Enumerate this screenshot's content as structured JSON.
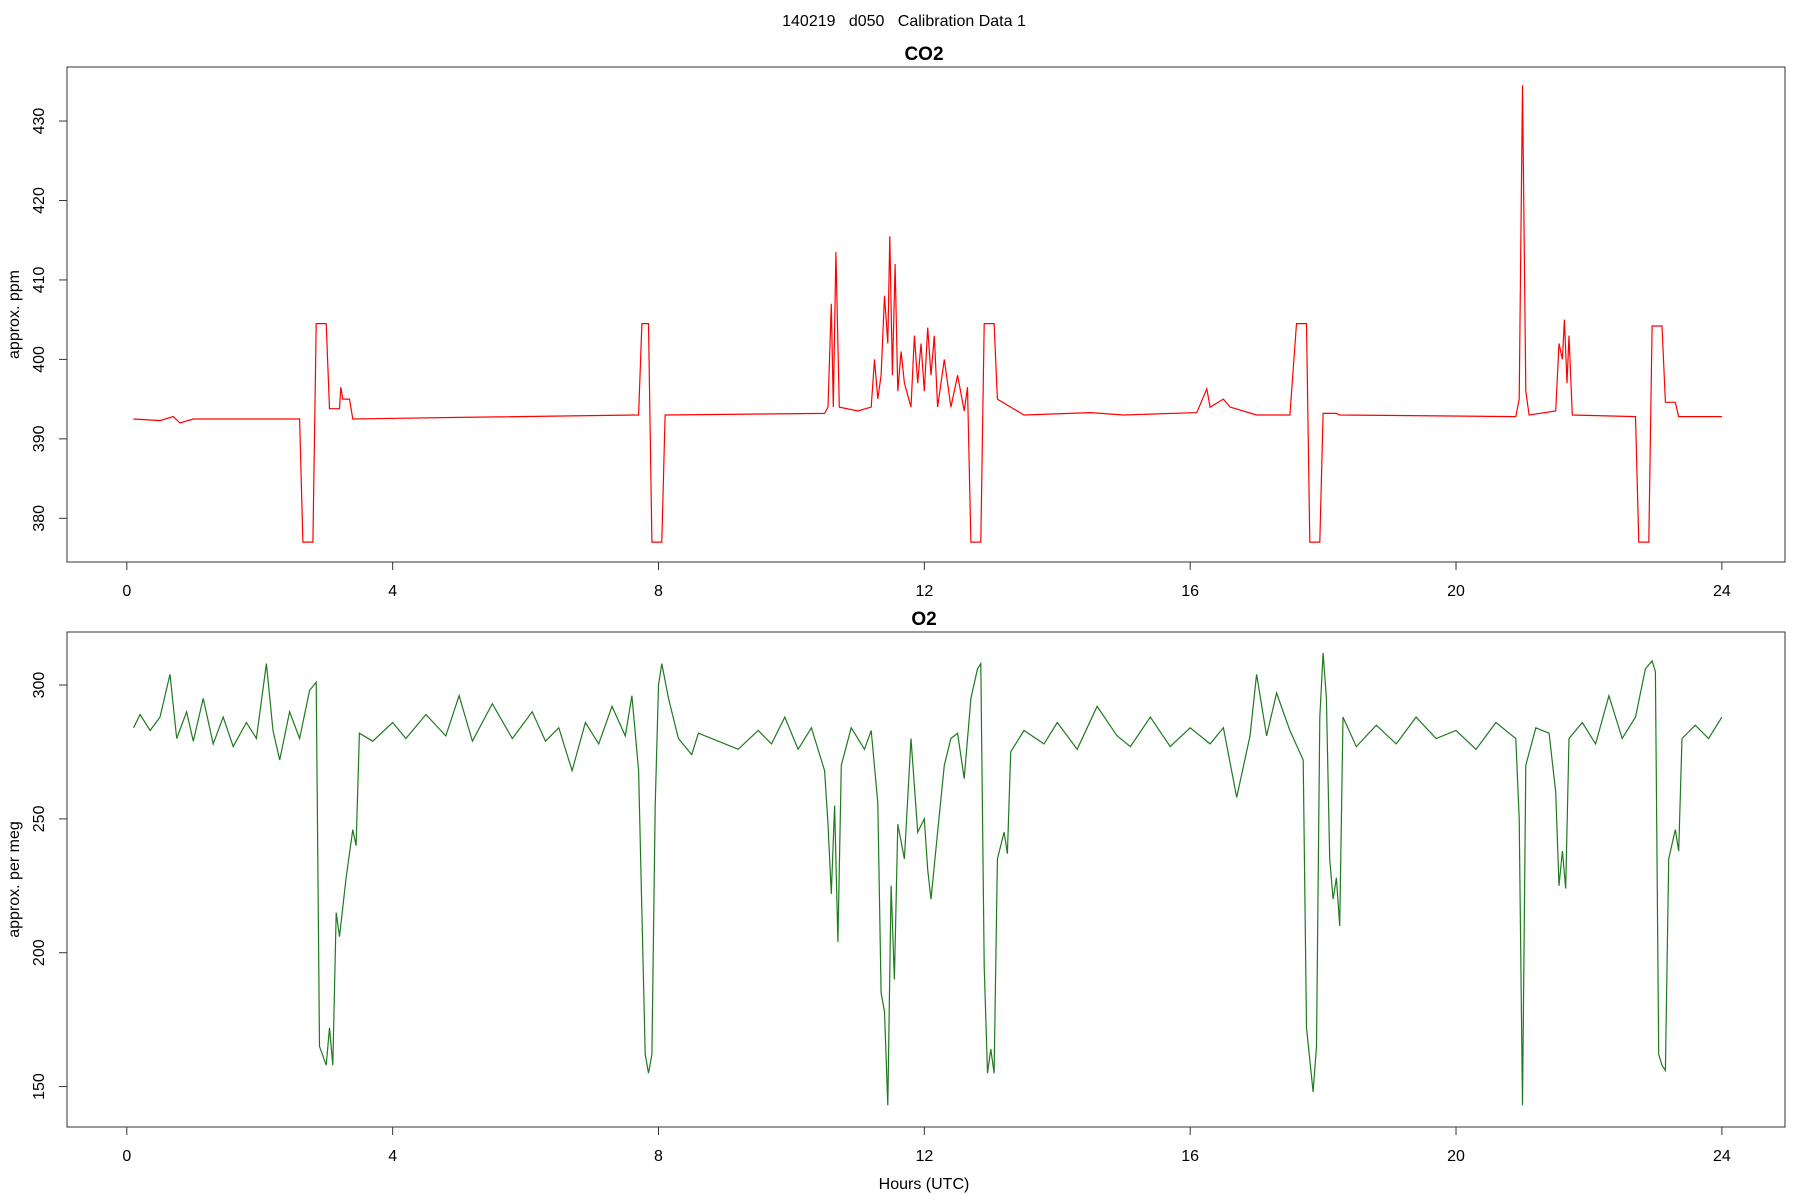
{
  "title": "140219   d050   Calibration Data 1",
  "chart_data": [
    {
      "type": "line",
      "title": "CO2",
      "ylabel": "approx. ppm",
      "xlim": [
        -0.9,
        24.95
      ],
      "xticks": [
        0,
        4,
        8,
        12,
        16,
        20,
        24
      ],
      "ylim": [
        374.5,
        436.8
      ],
      "yticks": [
        380,
        390,
        400,
        410,
        420,
        430
      ],
      "x": [
        0.1,
        0.5,
        0.7,
        0.8,
        1,
        2.6,
        2.65,
        2.8,
        2.85,
        3,
        3.05,
        3.2,
        3.22,
        3.25,
        3.35,
        3.4,
        5,
        7.7,
        7.75,
        7.85,
        7.9,
        8.05,
        8.1,
        10.5,
        10.55,
        10.6,
        10.63,
        10.67,
        10.72,
        11,
        11.2,
        11.25,
        11.3,
        11.35,
        11.4,
        11.45,
        11.48,
        11.52,
        11.56,
        11.6,
        11.65,
        11.7,
        11.8,
        11.85,
        11.9,
        11.95,
        12.0,
        12.05,
        12.1,
        12.15,
        12.2,
        12.3,
        12.4,
        12.5,
        12.6,
        12.65,
        12.7,
        12.85,
        12.9,
        13.05,
        13.1,
        13.3,
        13.5,
        14.5,
        15,
        16.1,
        16.25,
        16.3,
        16.5,
        16.6,
        17,
        17.5,
        17.6,
        17.75,
        17.8,
        17.95,
        18.0,
        18.2,
        18.25,
        20.9,
        20.95,
        21.0,
        21.05,
        21.1,
        21.5,
        21.55,
        21.6,
        21.63,
        21.67,
        21.7,
        21.75,
        22.7,
        22.75,
        22.9,
        22.95,
        23.1,
        23.15,
        23.3,
        23.35,
        24
      ],
      "series": [
        {
          "color": "#ff0000",
          "values": [
            392.5,
            392.3,
            392.8,
            392,
            392.5,
            392.5,
            377,
            377,
            404.5,
            404.5,
            393.8,
            393.8,
            396.5,
            395,
            395,
            392.5,
            392.7,
            393,
            404.5,
            404.5,
            377,
            377,
            393,
            393.2,
            394,
            407,
            394,
            413.5,
            394,
            393.5,
            394,
            400,
            395,
            398,
            408,
            402,
            415.5,
            398,
            412,
            396,
            401,
            397,
            394,
            403,
            397,
            402,
            396,
            404,
            398,
            403,
            394,
            400,
            394,
            398,
            393.5,
            396.5,
            377,
            377,
            404.5,
            404.5,
            395,
            394,
            393,
            393.3,
            393,
            393.3,
            396.3,
            394,
            395,
            394,
            393,
            393,
            404.5,
            404.5,
            377,
            377,
            393.2,
            393.2,
            393,
            392.8,
            395,
            434.5,
            396,
            393,
            393.5,
            402,
            400,
            405,
            397,
            403,
            393,
            392.8,
            377,
            377,
            404.2,
            404.2,
            394.6,
            394.6,
            392.8,
            392.8
          ]
        }
      ]
    },
    {
      "type": "line",
      "title": "O2",
      "ylabel": "approx. per meg",
      "xlabel": "Hours (UTC)",
      "xlim": [
        -0.9,
        24.95
      ],
      "xticks": [
        0,
        4,
        8,
        12,
        16,
        20,
        24
      ],
      "ylim": [
        134.9,
        319.8
      ],
      "yticks": [
        150,
        200,
        250,
        300
      ],
      "x": [
        0.1,
        0.2,
        0.35,
        0.5,
        0.65,
        0.75,
        0.9,
        1.0,
        1.15,
        1.3,
        1.45,
        1.6,
        1.8,
        1.95,
        2.1,
        2.2,
        2.3,
        2.45,
        2.6,
        2.75,
        2.85,
        2.9,
        3.0,
        3.05,
        3.1,
        3.15,
        3.2,
        3.3,
        3.4,
        3.45,
        3.5,
        3.7,
        4.0,
        4.2,
        4.5,
        4.8,
        5.0,
        5.2,
        5.5,
        5.8,
        6.1,
        6.3,
        6.5,
        6.7,
        6.9,
        7.1,
        7.3,
        7.5,
        7.6,
        7.7,
        7.8,
        7.85,
        7.9,
        7.95,
        8.0,
        8.05,
        8.15,
        8.3,
        8.5,
        8.6,
        8.9,
        9.2,
        9.5,
        9.7,
        9.9,
        10.1,
        10.3,
        10.5,
        10.55,
        10.6,
        10.65,
        10.7,
        10.75,
        10.9,
        11.1,
        11.2,
        11.3,
        11.35,
        11.4,
        11.45,
        11.5,
        11.55,
        11.6,
        11.7,
        11.8,
        11.9,
        12.0,
        12.05,
        12.1,
        12.2,
        12.3,
        12.4,
        12.5,
        12.6,
        12.7,
        12.8,
        12.85,
        12.9,
        12.95,
        13.0,
        13.05,
        13.1,
        13.2,
        13.25,
        13.3,
        13.5,
        13.8,
        14.0,
        14.3,
        14.6,
        14.9,
        15.1,
        15.4,
        15.7,
        16.0,
        16.3,
        16.5,
        16.7,
        16.9,
        17.0,
        17.15,
        17.3,
        17.5,
        17.7,
        17.75,
        17.85,
        17.9,
        17.95,
        18.0,
        18.05,
        18.1,
        18.15,
        18.2,
        18.25,
        18.3,
        18.5,
        18.8,
        19.1,
        19.4,
        19.7,
        20.0,
        20.3,
        20.6,
        20.9,
        20.95,
        21.0,
        21.05,
        21.2,
        21.4,
        21.5,
        21.55,
        21.6,
        21.65,
        21.7,
        21.9,
        22.1,
        22.3,
        22.5,
        22.7,
        22.85,
        22.95,
        23.0,
        23.05,
        23.1,
        23.15,
        23.2,
        23.3,
        23.35,
        23.4,
        23.6,
        23.8,
        24.0
      ],
      "series": [
        {
          "color": "#1f7a1f",
          "values": [
            284,
            289,
            283,
            288,
            304,
            280,
            290,
            279,
            295,
            278,
            288,
            277,
            286,
            280,
            308,
            283,
            272,
            290,
            280,
            298,
            301,
            165,
            158,
            172,
            158,
            215,
            206,
            228,
            246,
            240,
            282,
            279,
            286,
            280,
            289,
            281,
            296,
            279,
            293,
            280,
            290,
            279,
            284,
            268,
            286,
            278,
            292,
            281,
            296,
            268,
            162,
            155,
            162,
            255,
            300,
            308,
            295,
            280,
            274,
            282,
            279,
            276,
            283,
            278,
            288,
            276,
            284,
            268,
            248,
            222,
            255,
            204,
            270,
            284,
            276,
            283,
            256,
            185,
            178,
            143,
            225,
            190,
            248,
            235,
            280,
            245,
            250,
            231,
            220,
            245,
            270,
            280,
            282,
            265,
            295,
            306,
            308,
            195,
            155,
            164,
            155,
            235,
            245,
            237,
            275,
            283,
            278,
            286,
            276,
            292,
            281,
            277,
            288,
            277,
            284,
            278,
            284,
            258,
            281,
            304,
            281,
            297,
            283,
            272,
            172,
            148,
            165,
            288,
            312,
            295,
            235,
            220,
            228,
            210,
            288,
            277,
            285,
            278,
            288,
            280,
            283,
            276,
            286,
            280,
            250,
            143,
            270,
            284,
            282,
            260,
            225,
            238,
            224,
            280,
            286,
            278,
            296,
            280,
            288,
            306,
            309,
            305,
            162,
            158,
            156,
            235,
            246,
            238,
            280,
            285,
            280,
            288
          ]
        }
      ]
    }
  ]
}
